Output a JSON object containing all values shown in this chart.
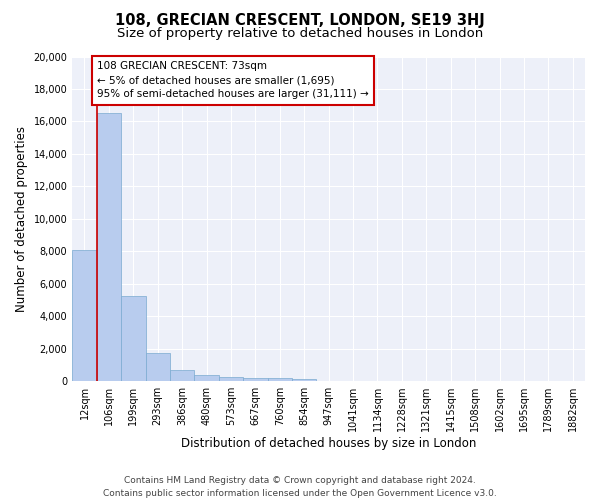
{
  "title": "108, GRECIAN CRESCENT, LONDON, SE19 3HJ",
  "subtitle": "Size of property relative to detached houses in London",
  "xlabel": "Distribution of detached houses by size in London",
  "ylabel": "Number of detached properties",
  "categories": [
    "12sqm",
    "106sqm",
    "199sqm",
    "293sqm",
    "386sqm",
    "480sqm",
    "573sqm",
    "667sqm",
    "760sqm",
    "854sqm",
    "947sqm",
    "1041sqm",
    "1134sqm",
    "1228sqm",
    "1321sqm",
    "1415sqm",
    "1508sqm",
    "1602sqm",
    "1695sqm",
    "1789sqm",
    "1882sqm"
  ],
  "values": [
    8050,
    16500,
    5250,
    1750,
    700,
    350,
    270,
    220,
    180,
    150,
    0,
    0,
    0,
    0,
    0,
    0,
    0,
    0,
    0,
    0,
    0
  ],
  "bar_color": "#b8ccee",
  "bar_edge_color": "#7aaad0",
  "annotation_line1": "108 GRECIAN CRESCENT: 73sqm",
  "annotation_line2": "← 5% of detached houses are smaller (1,695)",
  "annotation_line3": "95% of semi-detached houses are larger (31,111) →",
  "annotation_box_color": "#ffffff",
  "annotation_box_edge_color": "#cc0000",
  "vline_x": 0.5,
  "vline_color": "#cc0000",
  "ylim": [
    0,
    20000
  ],
  "yticks": [
    0,
    2000,
    4000,
    6000,
    8000,
    10000,
    12000,
    14000,
    16000,
    18000,
    20000
  ],
  "bg_color": "#edf0f9",
  "grid_color": "#ffffff",
  "footer_line1": "Contains HM Land Registry data © Crown copyright and database right 2024.",
  "footer_line2": "Contains public sector information licensed under the Open Government Licence v3.0.",
  "title_fontsize": 10.5,
  "subtitle_fontsize": 9.5,
  "xlabel_fontsize": 8.5,
  "ylabel_fontsize": 8.5,
  "tick_fontsize": 7,
  "annotation_fontsize": 7.5,
  "footer_fontsize": 6.5
}
